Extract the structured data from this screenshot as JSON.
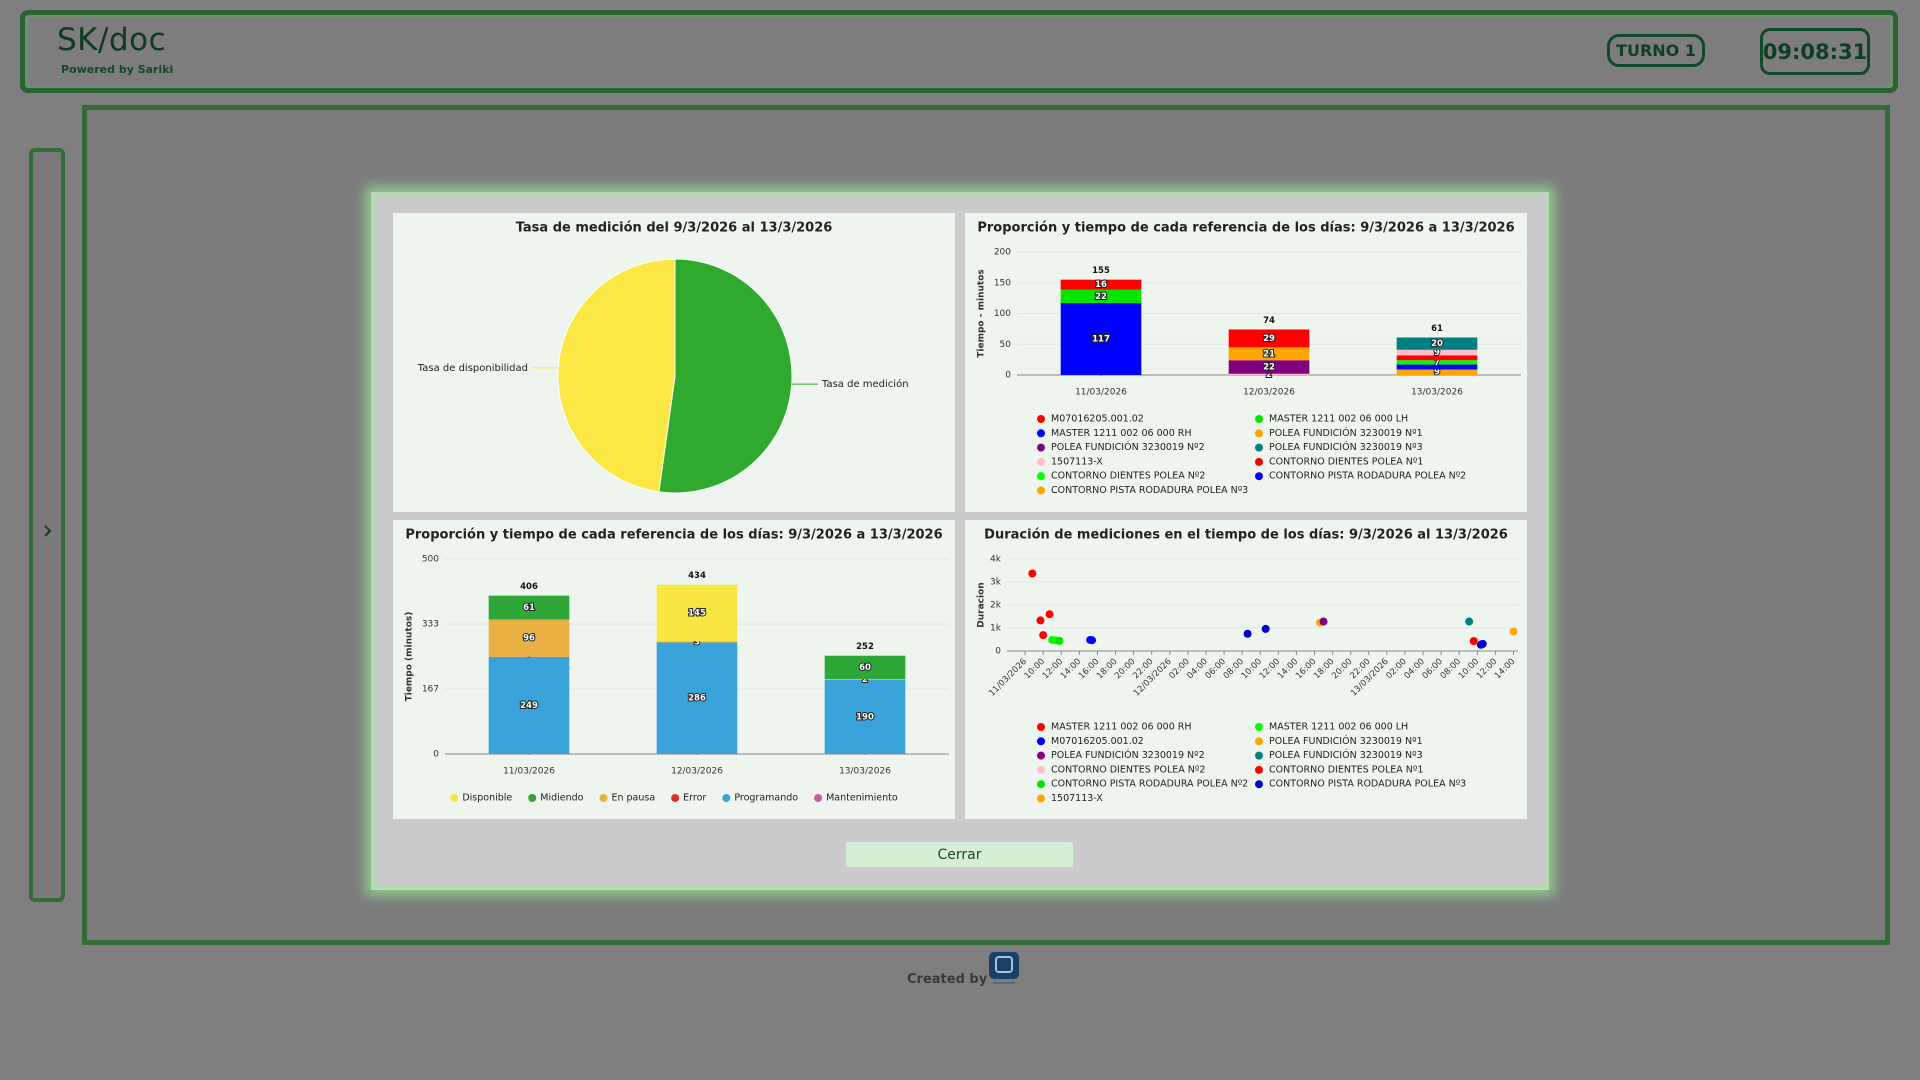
{
  "header": {
    "title": "SK/doc",
    "subtitle": "Powered by Sariki",
    "shift": "TURNO 1",
    "clock": "09:08:31"
  },
  "chart_data": [
    {
      "type": "pie",
      "title": "Tasa de medición del 9/3/2026 al 13/3/2026",
      "categories": [
        "Tasa de medición",
        "Tasa de disponibilidad"
      ],
      "values": [
        52.2,
        47.8
      ],
      "colors": [
        "#30aa2e",
        "#fbe845"
      ]
    },
    {
      "type": "bar",
      "stacked": true,
      "title": "Proporción y tiempo de cada referencia de los días: 9/3/2026 a 13/3/2026",
      "y_label": "Tiempo - minutos",
      "categories": [
        "11/03/2026",
        "12/03/2026",
        "13/03/2026"
      ],
      "totals": [
        155,
        74,
        61
      ],
      "ylim": [
        0,
        200
      ],
      "yticks": [
        0,
        50,
        100,
        150,
        200
      ],
      "grid": true,
      "legend": "bottom",
      "series": [
        {
          "name": "M07016205.001.02",
          "color": "#ff0000",
          "values": [
            16,
            29,
            null
          ]
        },
        {
          "name": "MASTER 1211 002 06 000 LH",
          "color": "#00e600",
          "values": [
            22,
            null,
            null
          ]
        },
        {
          "name": "MASTER 1211 002 06 000 RH",
          "color": "#0000ff",
          "values": [
            117,
            null,
            null
          ]
        },
        {
          "name": "POLEA FUNDICIÓN 3230019 Nº1",
          "color": "#ffa500",
          "values": [
            null,
            21,
            null
          ]
        },
        {
          "name": "POLEA FUNDICIÓN 3230019 Nº2",
          "color": "#800080",
          "values": [
            null,
            22,
            null
          ]
        },
        {
          "name": "POLEA FUNDICIÓN 3230019 Nº3",
          "color": "#008080",
          "values": [
            null,
            null,
            20
          ]
        },
        {
          "name": "1507113-X",
          "color": "#ffc0cb",
          "values": [
            null,
            2,
            9
          ]
        },
        {
          "name": "CONTORNO DIENTES POLEA Nº1",
          "color": "#ff0000",
          "values": [
            null,
            null,
            8
          ]
        },
        {
          "name": "CONTORNO DIENTES POLEA Nº2",
          "color": "#00ff00",
          "values": [
            null,
            null,
            7
          ]
        },
        {
          "name": "CONTORNO PISTA RODADURA POLEA Nº2",
          "color": "#0000ff",
          "values": [
            0,
            null,
            8
          ]
        },
        {
          "name": "CONTORNO PISTA RODADURA POLEA Nº3",
          "color": "#ffa500",
          "values": [
            null,
            null,
            9
          ]
        }
      ]
    },
    {
      "type": "bar",
      "stacked": true,
      "title": "Proporción y tiempo de cada referencia de los días: 9/3/2026 a 13/3/2026",
      "y_label": "Tiempo (minutos)",
      "categories": [
        "11/03/2026",
        "12/03/2026",
        "13/03/2026"
      ],
      "totals": [
        406,
        434,
        252
      ],
      "ylim": [
        0,
        500
      ],
      "yticks": [
        0,
        167,
        333,
        500
      ],
      "grid": true,
      "legend": "bottom",
      "series": [
        {
          "name": "Disponible",
          "color": "#f8e740",
          "values": [
            null,
            145,
            null
          ]
        },
        {
          "name": "Midiendo",
          "color": "#2ea738",
          "values": [
            61,
            null,
            60
          ]
        },
        {
          "name": "En pausa",
          "color": "#ebb044",
          "values": [
            96,
            3,
            2
          ]
        },
        {
          "name": "Error",
          "color": "#dc2e2e",
          "values": [
            0,
            null,
            null
          ]
        },
        {
          "name": "Programando",
          "color": "#3ba3dc",
          "values": [
            249,
            286,
            190
          ]
        },
        {
          "name": "Mantenimiento",
          "color": "#cf5aa8",
          "values": [
            0,
            0,
            0
          ]
        }
      ]
    },
    {
      "type": "scatter",
      "title": "Duración de mediciones en el tiempo de los días: 9/3/2026 al 13/3/2026",
      "y_label": "Duracion",
      "xlim": [
        6,
        62.5
      ],
      "ylim": [
        0,
        4000
      ],
      "xticks": [
        {
          "value": 8,
          "label": "11/03/2026"
        },
        {
          "value": 10,
          "label": "10:00"
        },
        {
          "value": 12,
          "label": "12:00"
        },
        {
          "value": 14,
          "label": "14:00"
        },
        {
          "value": 16,
          "label": "16:00"
        },
        {
          "value": 18,
          "label": "18:00"
        },
        {
          "value": 20,
          "label": "20:00"
        },
        {
          "value": 22,
          "label": "22:00"
        },
        {
          "value": 24,
          "label": "12/03/2026"
        },
        {
          "value": 26,
          "label": "02:00"
        },
        {
          "value": 28,
          "label": "04:00"
        },
        {
          "value": 30,
          "label": "06:00"
        },
        {
          "value": 32,
          "label": "08:00"
        },
        {
          "value": 34,
          "label": "10:00"
        },
        {
          "value": 36,
          "label": "12:00"
        },
        {
          "value": 38,
          "label": "14:00"
        },
        {
          "value": 40,
          "label": "16:00"
        },
        {
          "value": 42,
          "label": "18:00"
        },
        {
          "value": 44,
          "label": "20:00"
        },
        {
          "value": 46,
          "label": "22:00"
        },
        {
          "value": 48,
          "label": "13/03/2026"
        },
        {
          "value": 50,
          "label": "02:00"
        },
        {
          "value": 52,
          "label": "04:00"
        },
        {
          "value": 54,
          "label": "06:00"
        },
        {
          "value": 56,
          "label": "08:00"
        },
        {
          "value": 58,
          "label": "10:00"
        },
        {
          "value": 60,
          "label": "12:00"
        },
        {
          "value": 62,
          "label": "14:00"
        }
      ],
      "yticks": [
        0,
        {
          "value": 1000,
          "label": "1k"
        },
        {
          "value": 2000,
          "label": "2k"
        },
        {
          "value": 3000,
          "label": "3k"
        },
        {
          "value": 4000,
          "label": "4k"
        }
      ],
      "grid": true,
      "legend": "bottom",
      "series": [
        {
          "name": "MASTER 1211 002 06 000 RH",
          "color": "#ff0000",
          "x": [
            8.8,
            9.7,
            10.0,
            10.7
          ],
          "values": [
            3370,
            1330,
            690,
            1600
          ]
        },
        {
          "name": "MASTER 1211 002 06 000 LH",
          "color": "#00ff00",
          "x": [
            11.0,
            11.4
          ],
          "values": [
            480,
            460
          ]
        },
        {
          "name": "M07016205.001.02",
          "color": "#0000ff",
          "x": [
            15.2,
            15.4
          ],
          "values": [
            480,
            470
          ]
        },
        {
          "name": "POLEA FUNDICIÓN 3230019 Nº1",
          "color": "#ffa500",
          "x": [
            40.6
          ],
          "values": [
            1230
          ]
        },
        {
          "name": "POLEA FUNDICIÓN 3230019 Nº2",
          "color": "#800080",
          "x": [
            41.0
          ],
          "values": [
            1280
          ]
        },
        {
          "name": "POLEA FUNDICIÓN 3230019 Nº3",
          "color": "#008080",
          "x": [
            57.1
          ],
          "values": [
            1280
          ]
        },
        {
          "name": "CONTORNO DIENTES POLEA Nº2",
          "color": "#ffc0cb",
          "x": [
            57.9
          ],
          "values": [
            400
          ]
        },
        {
          "name": "CONTORNO DIENTES POLEA Nº1",
          "color": "#ff0000",
          "x": [
            57.6
          ],
          "values": [
            430
          ]
        },
        {
          "name": "CONTORNO PISTA RODADURA POLEA Nº2",
          "color": "#00e600",
          "x": [
            11.8
          ],
          "values": [
            440
          ]
        },
        {
          "name": "CONTORNO PISTA RODADURA POLEA Nº3",
          "color": "#0000cd",
          "x": [
            32.6,
            34.6,
            58.4,
            58.6
          ],
          "values": [
            750,
            960,
            270,
            310
          ]
        },
        {
          "name": "1507113-X",
          "color": "#ffa500",
          "x": [
            62.0
          ],
          "values": [
            850
          ]
        }
      ]
    }
  ],
  "modal": {
    "close_button": "Cerrar"
  },
  "footer": {
    "credit": "Created by"
  }
}
